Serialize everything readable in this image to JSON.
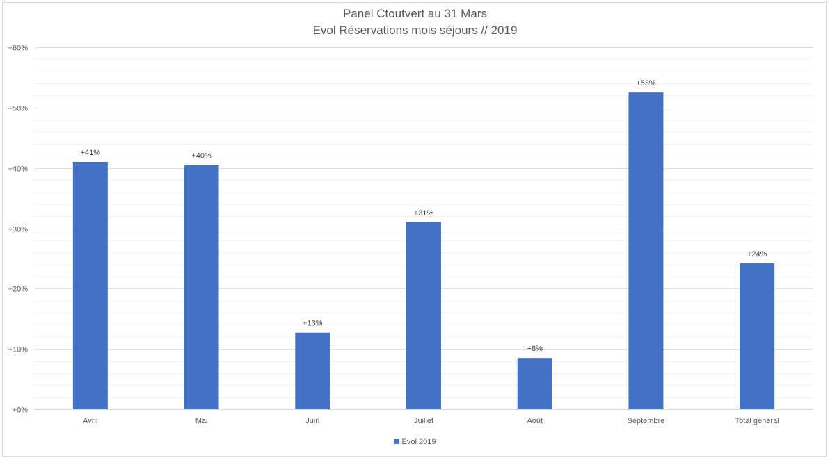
{
  "chart_data": {
    "type": "bar",
    "title": [
      "Panel Ctoutvert au 31 Mars",
      "Evol Réservations mois séjours // 2019"
    ],
    "categories": [
      "Avril",
      "Mai",
      "Juin",
      "Juillet",
      "Août",
      "Septembre",
      "Total général"
    ],
    "series": [
      {
        "name": "Evol 2019",
        "values": [
          41,
          40.5,
          12.7,
          31,
          8.5,
          52.5,
          24.2
        ],
        "data_labels": [
          "+41%",
          "+40%",
          "+13%",
          "+31%",
          "+8%",
          "+53%",
          "+24%"
        ]
      }
    ],
    "y_ticks": [
      "+0%",
      "+10%",
      "+20%",
      "+30%",
      "+40%",
      "+50%",
      "+60%"
    ],
    "ylim": [
      0,
      60
    ],
    "major_gridlines": true,
    "minor_gridlines": true,
    "legend_position": "bottom",
    "bar_color": "#4472c4"
  }
}
